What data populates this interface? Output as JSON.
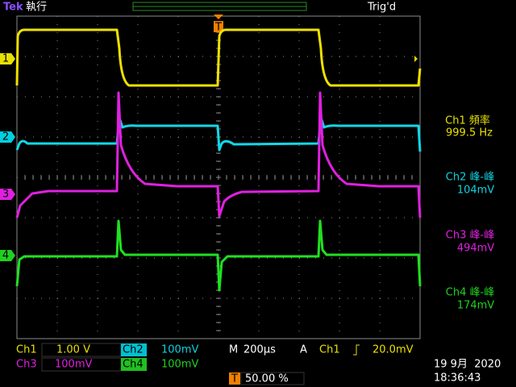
{
  "header": {
    "brand": "Tek",
    "status": "執行",
    "trigger_status": "Trig'd",
    "trigger_position_marker": "T"
  },
  "channel_markers": [
    "1",
    "2",
    "3",
    "4"
  ],
  "measurements": [
    {
      "label": "Ch1 頻率",
      "value": "999.5 Hz"
    },
    {
      "label": "Ch2 峰-峰",
      "value": "104mV"
    },
    {
      "label": "Ch3 峰-峰",
      "value": "494mV"
    },
    {
      "label": "Ch4 峰-峰",
      "value": "174mV"
    }
  ],
  "settings": {
    "ch1": {
      "name": "Ch1",
      "scale": "1.00 V"
    },
    "ch2": {
      "name": "Ch2",
      "scale": "100mV"
    },
    "ch3": {
      "name": "Ch3",
      "scale": "100mV"
    },
    "ch4": {
      "name": "Ch4",
      "scale": "100mV"
    },
    "timebase": {
      "label": "M",
      "scale": "200µs"
    },
    "trigger": {
      "label": "A",
      "source": "Ch1",
      "level": "20.0mV"
    },
    "trigger_marker": "T",
    "trigger_position": "50.00 %"
  },
  "datetime": {
    "date": "19 9月  2020",
    "time": "18:36:43"
  }
}
